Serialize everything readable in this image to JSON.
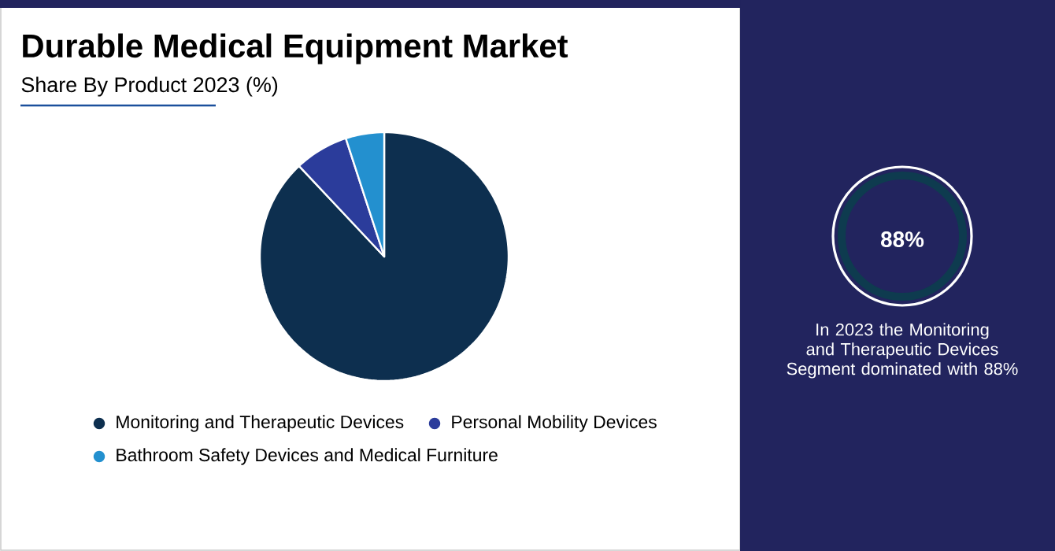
{
  "chart_data": {
    "type": "pie",
    "title": "Durable Medical Equipment Market",
    "subtitle": "Share By Product 2023 (%)",
    "categories": [
      "Monitoring and Therapeutic Devices",
      "Personal Mobility Devices",
      "Bathroom Safety Devices and Medical Furniture"
    ],
    "values": [
      88,
      7,
      5
    ],
    "colors": [
      "#0d2f4f",
      "#2b3c9b",
      "#2390cf"
    ],
    "legend": "bottom",
    "annotations": [
      "88%",
      "In 2023 the Monitoring and Therapeutic Devices Segment dominated with 88%"
    ]
  }
}
